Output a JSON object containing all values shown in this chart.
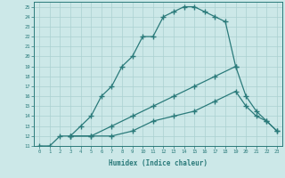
{
  "title": "",
  "xlabel": "Humidex (Indice chaleur)",
  "bg_color": "#cce8e8",
  "grid_color": "#aad0d0",
  "line_color": "#2a7a7a",
  "xlim": [
    -0.5,
    23.5
  ],
  "ylim": [
    11,
    25.5
  ],
  "xticks": [
    0,
    1,
    2,
    3,
    4,
    5,
    6,
    7,
    8,
    9,
    10,
    11,
    12,
    13,
    14,
    15,
    16,
    17,
    18,
    19,
    20,
    21,
    22,
    23
  ],
  "yticks": [
    11,
    12,
    13,
    14,
    15,
    16,
    17,
    18,
    19,
    20,
    21,
    22,
    23,
    24,
    25
  ],
  "line1_x": [
    0,
    1,
    2,
    3,
    4,
    5,
    6,
    7,
    8,
    9,
    10,
    11,
    12,
    13,
    14,
    15,
    16,
    17,
    18,
    19
  ],
  "line1_y": [
    11,
    11,
    12,
    12,
    13,
    14,
    16,
    17,
    19,
    20,
    22,
    22,
    24,
    24.5,
    25,
    25,
    24.5,
    24,
    23.5,
    19
  ],
  "line2_x": [
    3,
    5,
    7,
    9,
    11,
    13,
    15,
    17,
    19,
    20,
    21,
    22,
    23
  ],
  "line2_y": [
    12,
    12,
    13,
    14,
    15,
    16,
    17,
    18,
    19,
    16,
    14.5,
    13.5,
    12.5
  ],
  "line3_x": [
    3,
    5,
    7,
    9,
    11,
    13,
    15,
    17,
    19,
    20,
    21,
    22,
    23
  ],
  "line3_y": [
    12,
    12,
    12,
    12.5,
    13.5,
    14,
    14.5,
    15.5,
    16.5,
    15,
    14,
    13.5,
    12.5
  ]
}
